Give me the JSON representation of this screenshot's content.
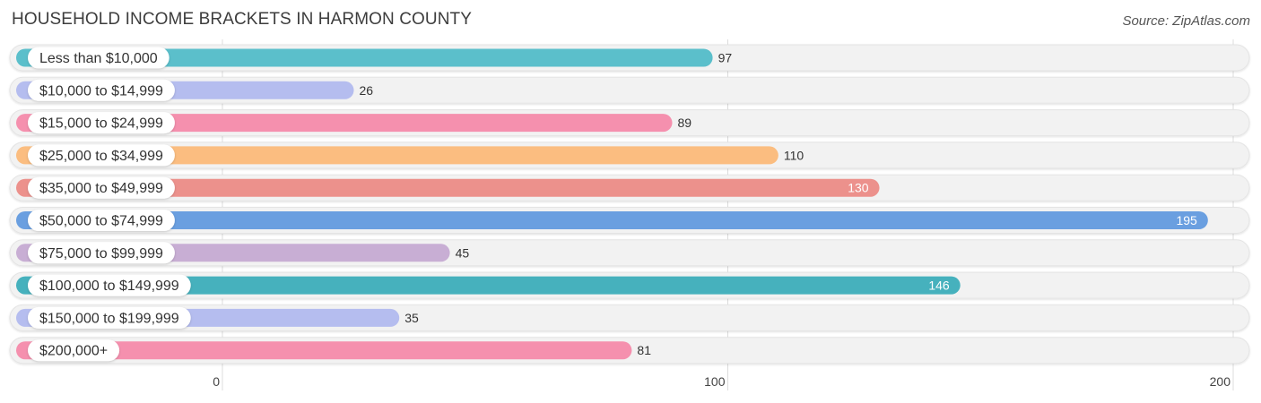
{
  "header": {
    "title": "HOUSEHOLD INCOME BRACKETS IN HARMON COUNTY",
    "source": "Source: ZipAtlas.com"
  },
  "chart_data": {
    "type": "bar",
    "orientation": "horizontal",
    "title": "HOUSEHOLD INCOME BRACKETS IN HARMON COUNTY",
    "xlabel": "",
    "ylabel": "",
    "xlim": [
      0,
      200
    ],
    "ticks": [
      0,
      100,
      200
    ],
    "tick_labels": [
      "0",
      "100",
      "200"
    ],
    "grid": true,
    "categories": [
      "Less than $10,000",
      "$10,000 to $14,999",
      "$15,000 to $24,999",
      "$25,000 to $34,999",
      "$35,000 to $49,999",
      "$50,000 to $74,999",
      "$75,000 to $99,999",
      "$100,000 to $149,999",
      "$150,000 to $199,999",
      "$200,000+"
    ],
    "values": [
      97,
      26,
      89,
      110,
      130,
      195,
      45,
      146,
      35,
      81
    ],
    "value_labels": [
      "97",
      "26",
      "89",
      "110",
      "130",
      "195",
      "45",
      "146",
      "35",
      "81"
    ],
    "colors": [
      "#5bbfcb",
      "#b5bdef",
      "#f590ae",
      "#fbbd80",
      "#ec918c",
      "#6a9fe0",
      "#c8aed4",
      "#46b1bd",
      "#b5bdef",
      "#f590ae"
    ]
  }
}
